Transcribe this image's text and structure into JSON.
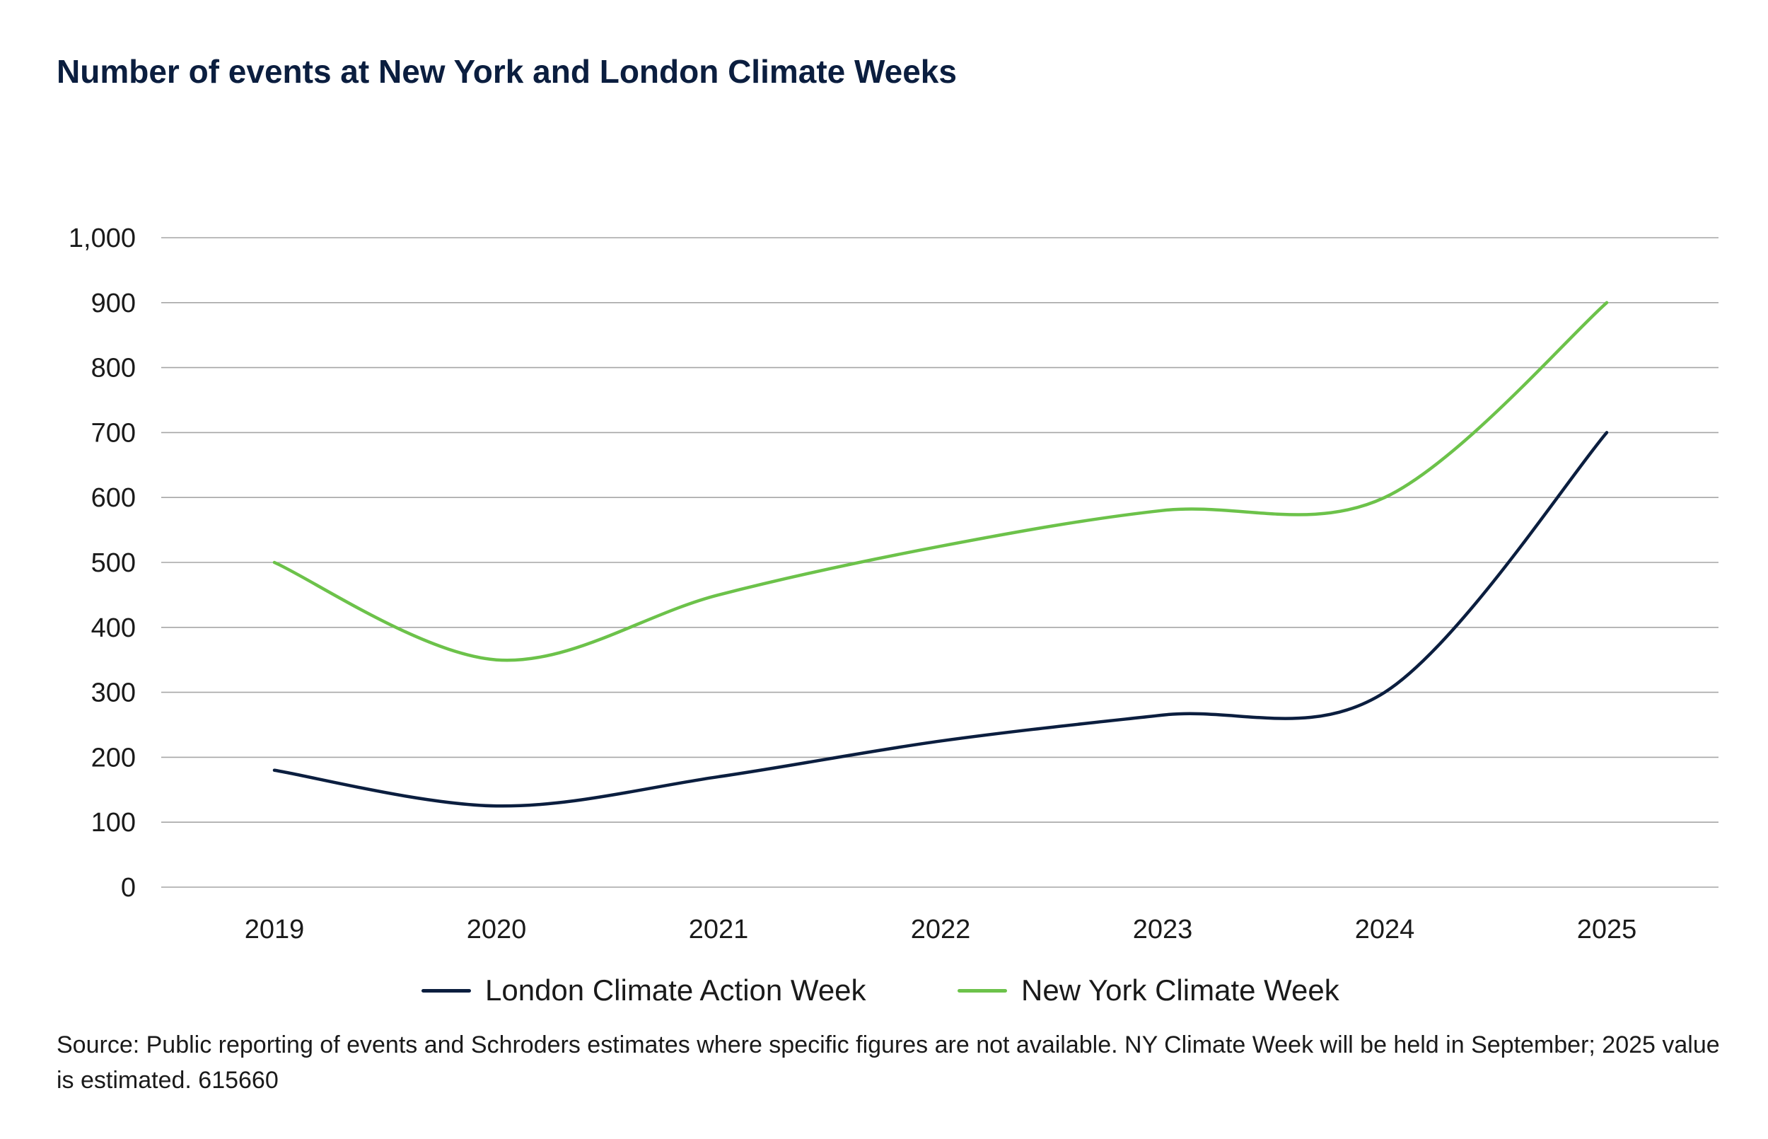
{
  "title": "Number of events at New York and London Climate Weeks",
  "source": "Source: Public reporting of events and Schroders estimates where specific figures are not available. NY Climate Week will be held in September; 2025 value is estimated. 615660",
  "colors": {
    "london": "#0b1e3f",
    "new_york": "#6cc24a",
    "grid": "#a6a6a6"
  },
  "chart_data": {
    "type": "line",
    "title": "Number of events at New York and London Climate Weeks",
    "categories": [
      "2019",
      "2020",
      "2021",
      "2022",
      "2023",
      "2024",
      "2025"
    ],
    "series": [
      {
        "name": "London Climate Action Week",
        "values": [
          180,
          125,
          170,
          225,
          265,
          300,
          700
        ]
      },
      {
        "name": "New York Climate Week",
        "values": [
          500,
          350,
          450,
          525,
          580,
          600,
          900
        ]
      }
    ],
    "yticks": [
      "0",
      "100",
      "200",
      "300",
      "400",
      "500",
      "600",
      "700",
      "800",
      "900",
      "1,000"
    ],
    "ylim": [
      0,
      1000
    ],
    "xlabel": "",
    "ylabel": "",
    "grid": true,
    "legend": "bottom",
    "smooth": true
  }
}
